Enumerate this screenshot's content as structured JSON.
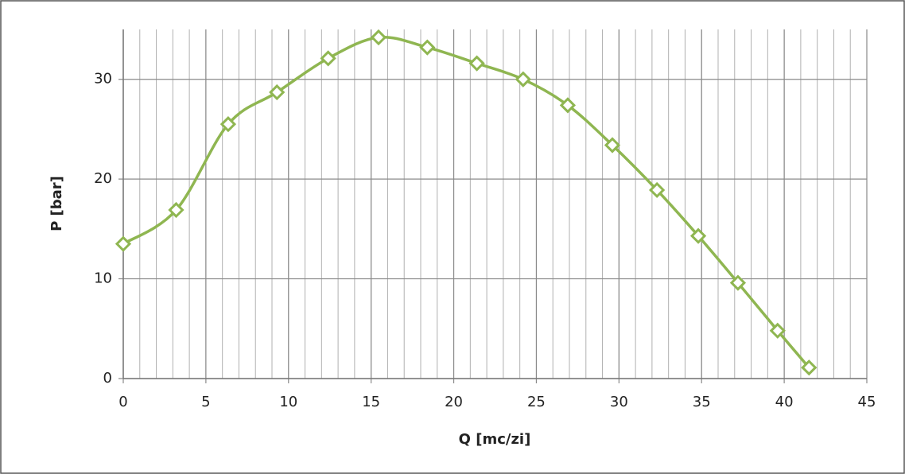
{
  "chart_data": {
    "type": "line",
    "smooth": true,
    "x_label": "Q  [mc/zi]",
    "y_label": "P [bar]",
    "x": [
      0,
      3.2,
      6.35,
      9.3,
      12.4,
      15.45,
      18.4,
      21.4,
      24.2,
      26.9,
      29.6,
      32.3,
      34.8,
      37.2,
      39.6,
      41.5
    ],
    "series": [
      {
        "color": "#8fb651",
        "marker": "diamond",
        "values": [
          13.5,
          16.9,
          25.5,
          28.7,
          32.1,
          34.2,
          33.2,
          31.6,
          30.0,
          27.4,
          23.4,
          18.9,
          14.3,
          9.6,
          4.8,
          1.1
        ]
      }
    ],
    "xlim": [
      0,
      45
    ],
    "xticks": [
      0,
      5,
      10,
      15,
      20,
      25,
      30,
      35,
      40,
      45
    ],
    "ylim": [
      0,
      35
    ],
    "yticks": [
      0,
      10,
      20,
      30
    ],
    "grid": true,
    "minor_x_grid": true
  }
}
